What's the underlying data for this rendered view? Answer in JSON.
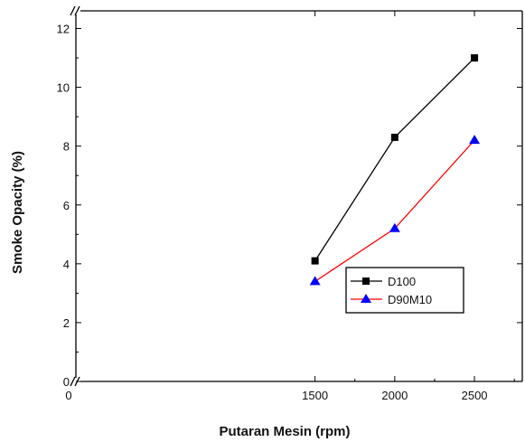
{
  "chart_data": {
    "type": "line",
    "title": "",
    "xlabel": "Putaran Mesin (rpm)",
    "ylabel": "Smoke Opacity (%)",
    "x": [
      1500,
      2000,
      2500
    ],
    "series": [
      {
        "name": "D100",
        "values": [
          4.1,
          8.3,
          11.0
        ],
        "color": "#000000",
        "marker": "square"
      },
      {
        "name": "D90M10",
        "values": [
          3.4,
          5.2,
          8.2
        ],
        "color": "#ff0000",
        "marker_color": "#0000ff",
        "marker": "triangle"
      }
    ],
    "xlim": [
      0,
      2800
    ],
    "ylim": [
      0,
      12.6
    ],
    "axis_breaks": {
      "x": true,
      "y": true
    },
    "x_ticks": [
      {
        "value": 0,
        "label": "0"
      },
      {
        "value": 1500,
        "label": "1500"
      },
      {
        "value": 2000,
        "label": "2000"
      },
      {
        "value": 2500,
        "label": "2500"
      }
    ],
    "y_ticks": [
      {
        "value": 0,
        "label": "0"
      },
      {
        "value": 2,
        "label": "2"
      },
      {
        "value": 4,
        "label": "4"
      },
      {
        "value": 6,
        "label": "6"
      },
      {
        "value": 8,
        "label": "8"
      },
      {
        "value": 10,
        "label": "10"
      },
      {
        "value": 12,
        "label": "12"
      }
    ],
    "grid": false,
    "legend_position": "lower-right"
  }
}
